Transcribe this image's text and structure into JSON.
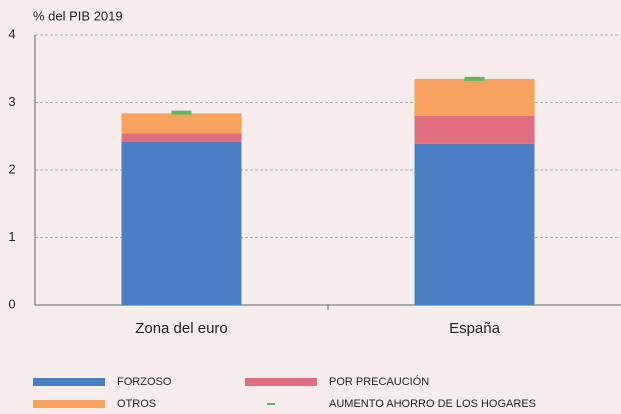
{
  "chart_data": {
    "type": "bar",
    "stacked": true,
    "y_label": "% del PIB 2019",
    "categories": [
      "Zona del euro",
      "España"
    ],
    "series": [
      {
        "name": "FORZOSO",
        "color": "#4a7fc3",
        "values": [
          2.42,
          2.39
        ]
      },
      {
        "name": "POR PRECAUCIÓN",
        "color": "#df6f80",
        "values": [
          0.12,
          0.41
        ]
      },
      {
        "name": "OTROS",
        "color": "#f7a25e",
        "values": [
          0.3,
          0.55
        ]
      },
      {
        "name": "AUMENTO AHORRO DE LOS HOGARES",
        "color": "#5cb85c",
        "type": "marker",
        "values": [
          2.85,
          3.35
        ]
      }
    ],
    "ylim": [
      0,
      4
    ],
    "yticks": [
      0,
      1,
      2,
      3,
      4
    ],
    "grid": true
  }
}
